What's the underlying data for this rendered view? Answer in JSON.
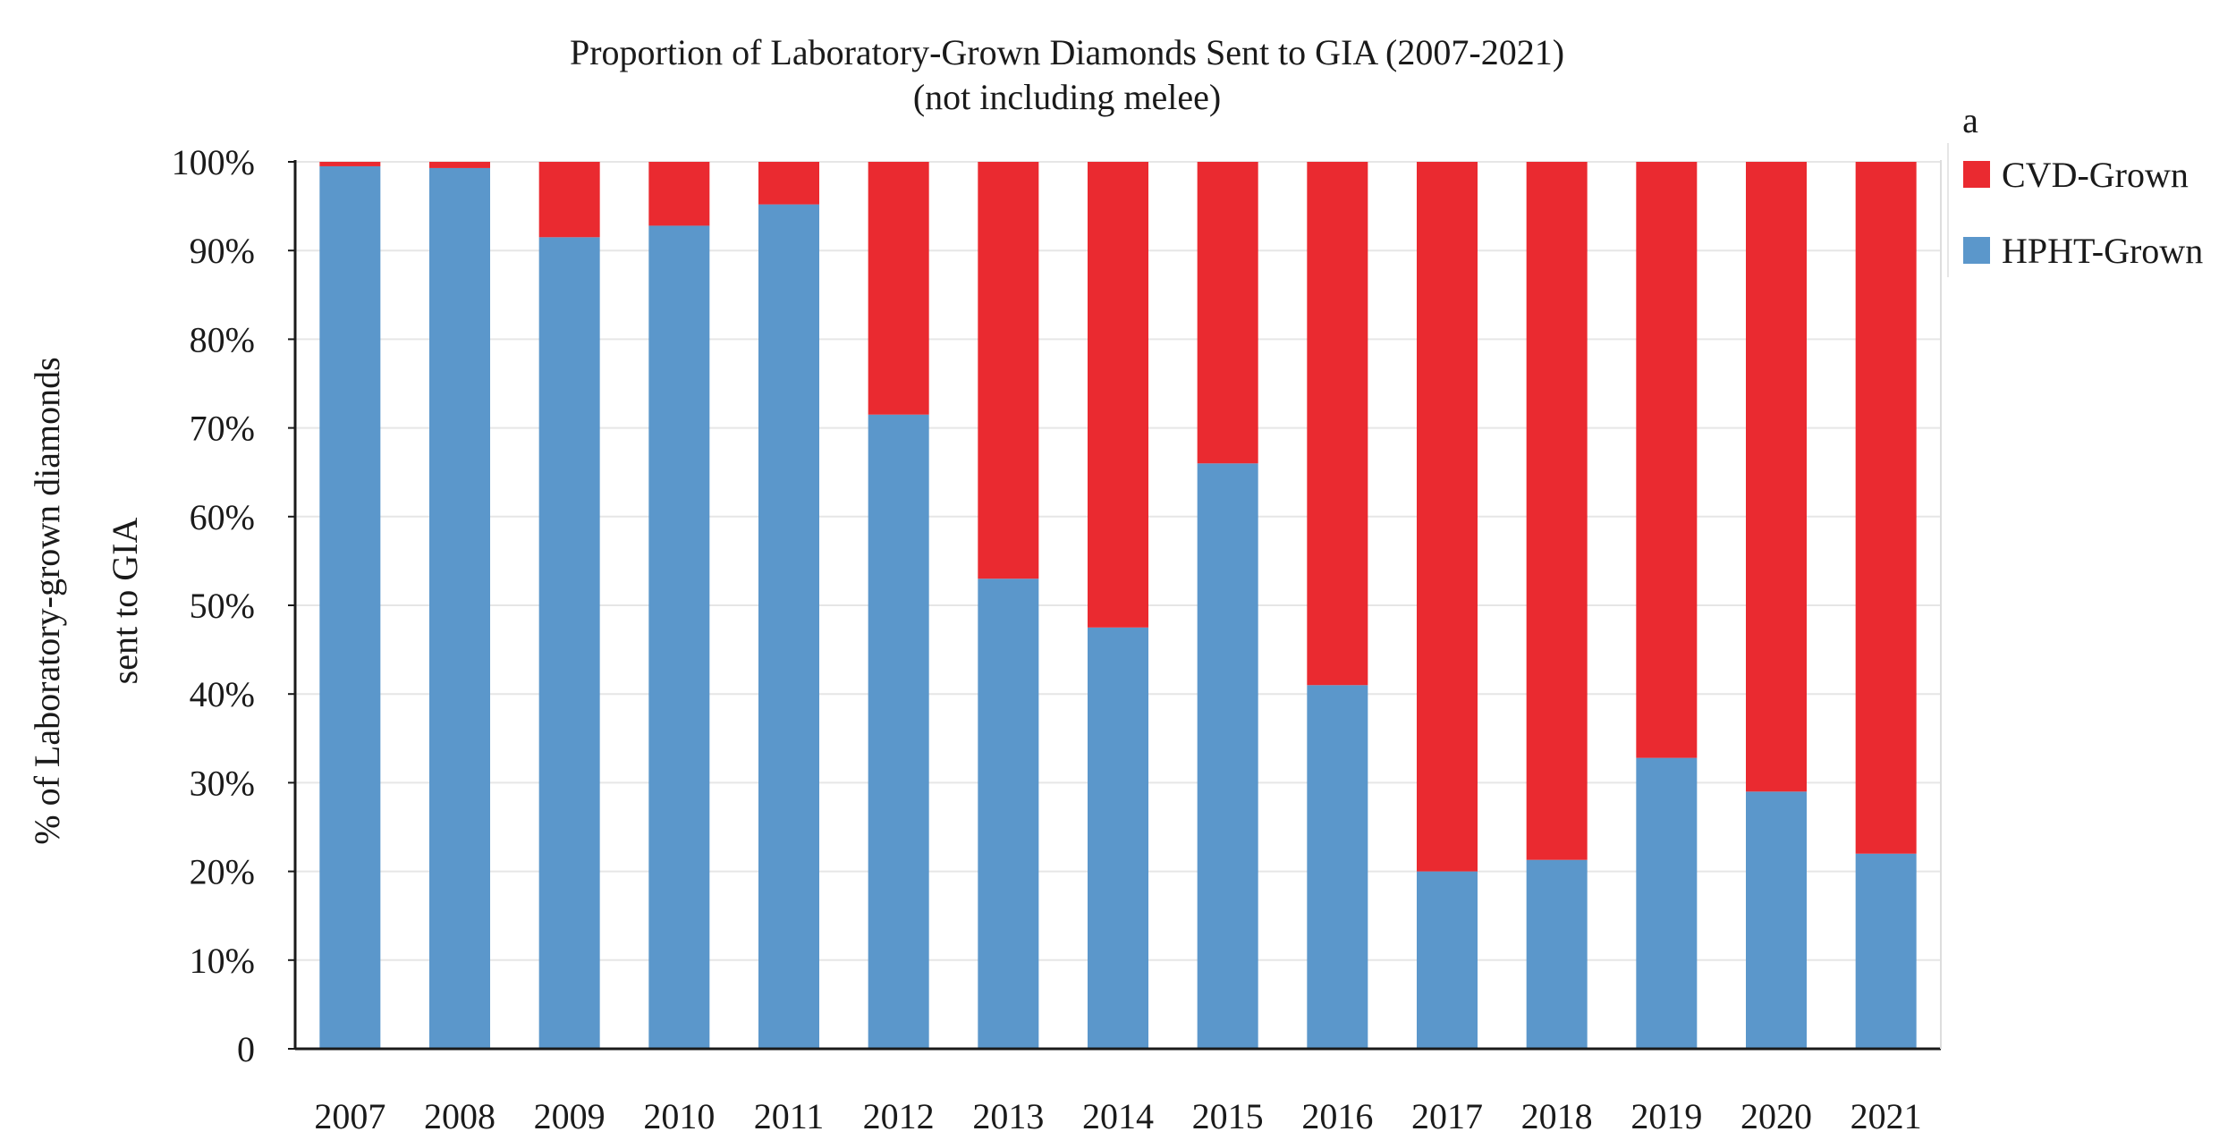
{
  "chart_data": {
    "type": "bar",
    "stacked": true,
    "title": "Proportion of  Laboratory-Grown Diamonds Sent to GIA (2007-2021)",
    "subtitle": "(not including melee)",
    "panel_label": "a",
    "ylabel_line1": "% of  Laboratory-grown diamonds",
    "ylabel_line2": "sent to GIA",
    "xlabel": "",
    "ylim": [
      0,
      100
    ],
    "yticks": [
      0,
      10,
      20,
      30,
      40,
      50,
      60,
      70,
      80,
      90,
      100
    ],
    "ytick_labels": [
      "0",
      "10%",
      "20%",
      "30%",
      "40%",
      "50%",
      "60%",
      "70%",
      "80%",
      "90%",
      "100%"
    ],
    "grid": true,
    "legend_position": "top-right",
    "categories": [
      "2007",
      "2008",
      "2009",
      "2010",
      "2011",
      "2012",
      "2013",
      "2014",
      "2015",
      "2016",
      "2017",
      "2018",
      "2019",
      "2020",
      "2021"
    ],
    "series": [
      {
        "name": "HPHT-Grown",
        "color": "#5b97cb",
        "values": [
          99.5,
          99.3,
          91.5,
          92.8,
          95.2,
          71.5,
          53.0,
          47.5,
          66.0,
          41.0,
          20.0,
          21.3,
          32.8,
          29.0,
          22.0
        ]
      },
      {
        "name": "CVD-Grown",
        "color": "#ea2a30",
        "values": [
          0.5,
          0.7,
          8.5,
          7.2,
          4.8,
          28.5,
          47.0,
          52.5,
          34.0,
          59.0,
          80.0,
          78.7,
          67.2,
          71.0,
          78.0
        ]
      }
    ],
    "legend_order": [
      "CVD-Grown",
      "HPHT-Grown"
    ]
  }
}
